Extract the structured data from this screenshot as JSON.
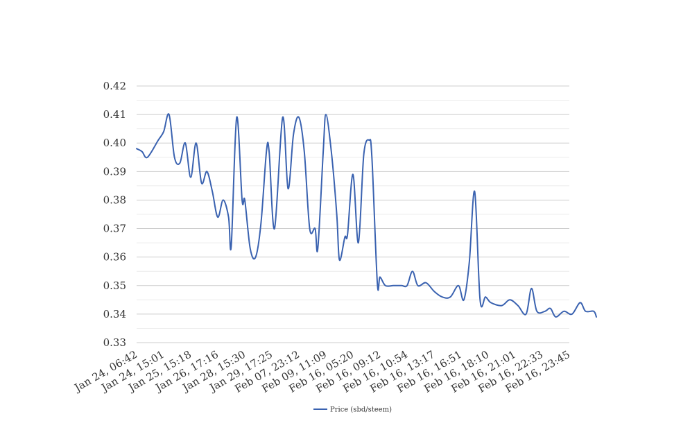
{
  "chart_data": {
    "type": "line",
    "title": "",
    "xlabel": "",
    "ylabel": "",
    "ylim": [
      0.33,
      0.42
    ],
    "yticks": [
      "0.33",
      "0.34",
      "0.35",
      "0.36",
      "0.37",
      "0.38",
      "0.39",
      "0.40",
      "0.41",
      "0.42"
    ],
    "grid": true,
    "legend_position": "bottom-center",
    "xtick_labels": [
      "Jan 24, 06:42",
      "Jan 24, 15:01",
      "Jan 25, 15:18",
      "Jan 26, 17:16",
      "Jan 28, 15:30",
      "Jan 29, 17:25",
      "Feb 07, 23:12",
      "Feb 09, 11:09",
      "Feb 16, 05:20",
      "Feb 16, 09:12",
      "Feb 16, 10:54",
      "Feb 16, 13:17",
      "Feb 16, 16:51",
      "Feb 16, 18:10",
      "Feb 16, 21:01",
      "Feb 16, 22:33",
      "Feb 16, 23:45"
    ],
    "series": [
      {
        "name": "Price (sbd/steem)",
        "color": "#3a62b0",
        "points": [
          [
            0.0,
            0.398
          ],
          [
            0.2,
            0.397
          ],
          [
            0.4,
            0.395
          ],
          [
            0.8,
            0.401
          ],
          [
            1.0,
            0.404
          ],
          [
            1.2,
            0.41
          ],
          [
            1.4,
            0.395
          ],
          [
            1.6,
            0.393
          ],
          [
            1.8,
            0.4
          ],
          [
            2.0,
            0.388
          ],
          [
            2.2,
            0.4
          ],
          [
            2.4,
            0.386
          ],
          [
            2.6,
            0.39
          ],
          [
            2.8,
            0.383
          ],
          [
            3.0,
            0.374
          ],
          [
            3.2,
            0.38
          ],
          [
            3.4,
            0.374
          ],
          [
            3.5,
            0.364
          ],
          [
            3.7,
            0.409
          ],
          [
            3.9,
            0.38
          ],
          [
            4.0,
            0.38
          ],
          [
            4.2,
            0.363
          ],
          [
            4.4,
            0.36
          ],
          [
            4.6,
            0.372
          ],
          [
            4.8,
            0.397
          ],
          [
            4.9,
            0.397
          ],
          [
            5.1,
            0.37
          ],
          [
            5.4,
            0.409
          ],
          [
            5.6,
            0.384
          ],
          [
            5.8,
            0.403
          ],
          [
            6.0,
            0.409
          ],
          [
            6.2,
            0.397
          ],
          [
            6.4,
            0.37
          ],
          [
            6.6,
            0.37
          ],
          [
            6.7,
            0.363
          ],
          [
            6.9,
            0.397
          ],
          [
            7.0,
            0.41
          ],
          [
            7.2,
            0.397
          ],
          [
            7.4,
            0.375
          ],
          [
            7.5,
            0.359
          ],
          [
            7.7,
            0.367
          ],
          [
            7.8,
            0.368
          ],
          [
            8.0,
            0.389
          ],
          [
            8.2,
            0.365
          ],
          [
            8.4,
            0.396
          ],
          [
            8.6,
            0.401
          ],
          [
            8.7,
            0.395
          ],
          [
            8.9,
            0.351
          ],
          [
            9.0,
            0.353
          ],
          [
            9.2,
            0.35
          ],
          [
            9.5,
            0.35
          ],
          [
            9.8,
            0.35
          ],
          [
            10.0,
            0.35
          ],
          [
            10.2,
            0.355
          ],
          [
            10.4,
            0.35
          ],
          [
            10.7,
            0.351
          ],
          [
            11.0,
            0.348
          ],
          [
            11.3,
            0.346
          ],
          [
            11.6,
            0.346
          ],
          [
            11.9,
            0.35
          ],
          [
            12.1,
            0.345
          ],
          [
            12.3,
            0.358
          ],
          [
            12.5,
            0.383
          ],
          [
            12.7,
            0.345
          ],
          [
            12.9,
            0.346
          ],
          [
            13.1,
            0.344
          ],
          [
            13.5,
            0.343
          ],
          [
            13.8,
            0.345
          ],
          [
            14.1,
            0.343
          ],
          [
            14.4,
            0.34
          ],
          [
            14.6,
            0.349
          ],
          [
            14.8,
            0.341
          ],
          [
            15.1,
            0.341
          ],
          [
            15.3,
            0.342
          ],
          [
            15.5,
            0.339
          ],
          [
            15.8,
            0.341
          ],
          [
            16.1,
            0.34
          ],
          [
            16.4,
            0.344
          ],
          [
            16.6,
            0.341
          ],
          [
            16.9,
            0.341
          ],
          [
            17.0,
            0.339
          ]
        ]
      }
    ]
  }
}
